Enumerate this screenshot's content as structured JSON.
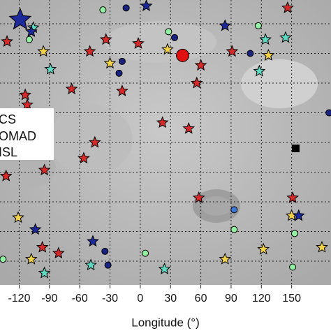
{
  "chart_data": {
    "type": "scatter",
    "x_label": "Longitude (°)",
    "xlim": [
      -139,
      189
    ],
    "ylim": [
      -72,
      72
    ],
    "xticks": [
      -120,
      -90,
      -60,
      -30,
      0,
      30,
      60,
      90,
      120,
      150
    ],
    "yticks": [
      -60,
      -45,
      -30,
      -15,
      0,
      15,
      30,
      45,
      60
    ],
    "grid": true,
    "legend": [
      "CS",
      "OMAD",
      "ISL"
    ],
    "series": [
      {
        "marker": "star",
        "color": "#d42a2a",
        "x": [
          -132,
          -50,
          -34,
          -2,
          60,
          91,
          -114,
          -112,
          -68,
          -18,
          22,
          48,
          -45,
          -56,
          -95,
          -133,
          151,
          58,
          -81,
          -97,
          146,
          56
        ],
        "y": [
          51,
          46,
          52,
          50,
          39,
          46,
          24,
          19,
          27,
          26,
          10,
          7,
          0,
          -8,
          -14,
          -17,
          -28,
          -28,
          -56,
          -53,
          68,
          30
        ]
      },
      {
        "marker": "star",
        "color": "#f2d24a",
        "x": [
          -96,
          -30,
          27,
          127,
          122,
          150,
          180,
          84,
          -108,
          -121
        ],
        "y": [
          46,
          40,
          47,
          44,
          -54,
          -37,
          -53,
          -59,
          -59,
          -38
        ]
      },
      {
        "marker": "star",
        "color": "#5fd8c2",
        "x": [
          -106,
          -89,
          118,
          144,
          24,
          -49,
          -95,
          124
        ],
        "y": [
          58,
          37,
          36,
          53,
          -64,
          -62,
          -66,
          52
        ]
      },
      {
        "marker": "star",
        "color": "#1c2a9a",
        "x": [
          6,
          84,
          -108,
          157,
          -104,
          -47
        ],
        "y": [
          69,
          59,
          56,
          -37,
          -44,
          -50
        ]
      },
      {
        "marker": "star",
        "color": "#1c2a9a",
        "size": 2,
        "x": [
          -119
        ],
        "y": [
          62
        ]
      },
      {
        "marker": "circle",
        "color": "#92f0a2",
        "x": [
          -110,
          -37,
          117,
          28,
          93,
          5,
          151,
          -136,
          153
        ],
        "y": [
          52,
          67,
          59,
          56,
          -44,
          -56,
          -63,
          -59,
          -46
        ]
      },
      {
        "marker": "circle",
        "color": "#3a78d6",
        "x": [
          93
        ],
        "y": [
          -34
        ]
      },
      {
        "marker": "circle",
        "color": "#1a237e",
        "x": [
          -14,
          -18,
          34,
          109,
          -35,
          -32,
          187,
          -21
        ],
        "y": [
          68,
          41,
          53,
          45,
          -55,
          -62,
          15,
          35
        ]
      },
      {
        "marker": "circle",
        "color": "#e01010",
        "size": 2,
        "x": [
          42
        ],
        "y": [
          44
        ]
      },
      {
        "marker": "square",
        "color": "#000000",
        "x": [
          154
        ],
        "y": [
          -3
        ]
      }
    ]
  }
}
